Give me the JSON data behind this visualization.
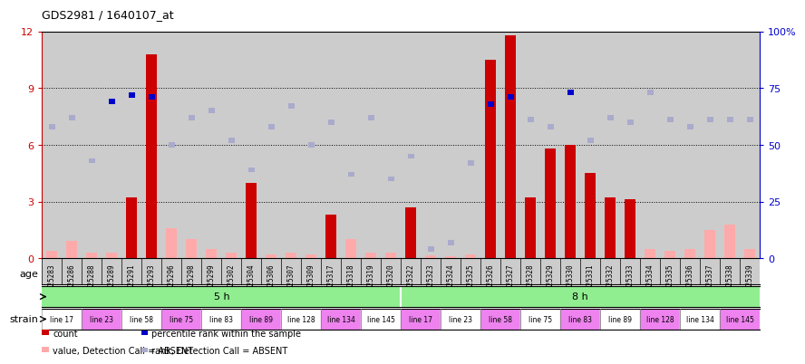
{
  "title": "GDS2981 / 1640107_at",
  "samples": [
    "GSM225283",
    "GSM225286",
    "GSM225288",
    "GSM225289",
    "GSM225291",
    "GSM225293",
    "GSM225296",
    "GSM225298",
    "GSM225299",
    "GSM225302",
    "GSM225304",
    "GSM225306",
    "GSM225307",
    "GSM225309",
    "GSM225317",
    "GSM225318",
    "GSM225319",
    "GSM225320",
    "GSM225322",
    "GSM225323",
    "GSM225324",
    "GSM225325",
    "GSM225326",
    "GSM225327",
    "GSM225328",
    "GSM225329",
    "GSM225330",
    "GSM225331",
    "GSM225332",
    "GSM225333",
    "GSM225334",
    "GSM225335",
    "GSM225336",
    "GSM225337",
    "GSM225338",
    "GSM225339"
  ],
  "count_values": [
    0.4,
    0.9,
    0.3,
    0.3,
    3.2,
    10.8,
    1.6,
    1.0,
    0.5,
    0.3,
    4.0,
    0.2,
    0.3,
    0.2,
    2.3,
    1.0,
    0.3,
    0.3,
    2.7,
    0.15,
    0.1,
    0.2,
    10.5,
    11.8,
    3.2,
    5.8,
    6.0,
    4.5,
    3.2,
    3.1,
    0.5,
    0.4,
    0.5,
    1.5,
    1.8,
    0.5
  ],
  "count_present": [
    false,
    false,
    false,
    false,
    true,
    true,
    false,
    false,
    false,
    false,
    true,
    false,
    false,
    false,
    true,
    false,
    false,
    false,
    true,
    false,
    false,
    false,
    true,
    true,
    true,
    true,
    true,
    true,
    true,
    true,
    false,
    false,
    false,
    false,
    false,
    false
  ],
  "rank_values": [
    58,
    62,
    43,
    69,
    72,
    71,
    50,
    62,
    65,
    52,
    39,
    58,
    67,
    50,
    60,
    37,
    62,
    35,
    45,
    4,
    7,
    42,
    68,
    71,
    61,
    58,
    73,
    52,
    62,
    60,
    73,
    61,
    58,
    61,
    61,
    61
  ],
  "rank_present": [
    false,
    false,
    false,
    true,
    true,
    true,
    false,
    false,
    false,
    false,
    false,
    false,
    false,
    false,
    false,
    false,
    false,
    false,
    false,
    false,
    false,
    false,
    true,
    true,
    false,
    false,
    true,
    false,
    false,
    false,
    false,
    false,
    false,
    false,
    false,
    false
  ],
  "ylim_left": [
    0,
    12
  ],
  "ylim_right": [
    0,
    100
  ],
  "yticks_left": [
    0,
    3,
    6,
    9,
    12
  ],
  "yticks_right": [
    0,
    25,
    50,
    75,
    100
  ],
  "bar_color_present": "#cc0000",
  "bar_color_absent": "#ffaaaa",
  "rank_color_present": "#0000cc",
  "rank_color_absent": "#aaaacc",
  "strain_groups": [
    {
      "label": "line 17",
      "start": 0,
      "end": 2,
      "color": "#ffffff"
    },
    {
      "label": "line 23",
      "start": 2,
      "end": 4,
      "color": "#ee82ee"
    },
    {
      "label": "line 58",
      "start": 4,
      "end": 6,
      "color": "#ffffff"
    },
    {
      "label": "line 75",
      "start": 6,
      "end": 8,
      "color": "#ee82ee"
    },
    {
      "label": "line 83",
      "start": 8,
      "end": 10,
      "color": "#ffffff"
    },
    {
      "label": "line 89",
      "start": 10,
      "end": 12,
      "color": "#ee82ee"
    },
    {
      "label": "line 128",
      "start": 12,
      "end": 14,
      "color": "#ffffff"
    },
    {
      "label": "line 134",
      "start": 14,
      "end": 16,
      "color": "#ee82ee"
    },
    {
      "label": "line 145",
      "start": 16,
      "end": 18,
      "color": "#ffffff"
    },
    {
      "label": "line 17",
      "start": 18,
      "end": 20,
      "color": "#ee82ee"
    },
    {
      "label": "line 23",
      "start": 20,
      "end": 22,
      "color": "#ffffff"
    },
    {
      "label": "line 58",
      "start": 22,
      "end": 24,
      "color": "#ee82ee"
    },
    {
      "label": "line 75",
      "start": 24,
      "end": 26,
      "color": "#ffffff"
    },
    {
      "label": "line 83",
      "start": 26,
      "end": 28,
      "color": "#ee82ee"
    },
    {
      "label": "line 89",
      "start": 28,
      "end": 30,
      "color": "#ffffff"
    },
    {
      "label": "line 128",
      "start": 30,
      "end": 32,
      "color": "#ee82ee"
    },
    {
      "label": "line 134",
      "start": 32,
      "end": 34,
      "color": "#ffffff"
    },
    {
      "label": "line 145",
      "start": 34,
      "end": 36,
      "color": "#ee82ee"
    }
  ],
  "axis_label_color_left": "#cc0000",
  "axis_label_color_right": "#0000cc",
  "bg_color": "#ffffff",
  "bar_width": 0.55,
  "sample_label_bg": "#cccccc",
  "age_color": "#90ee90",
  "age_groups": [
    {
      "label": "5 h",
      "start": 0,
      "end": 18
    },
    {
      "label": "8 h",
      "start": 18,
      "end": 36
    }
  ]
}
